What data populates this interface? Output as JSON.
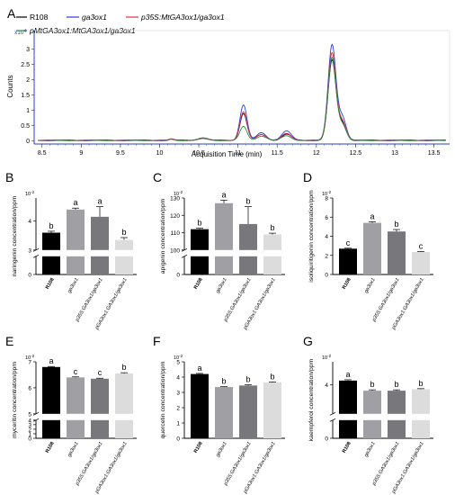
{
  "panel_labels": [
    "A",
    "B",
    "C",
    "D",
    "E",
    "F",
    "G"
  ],
  "colors": {
    "R108": "#000000",
    "ga3ox1": "#2a3fd6",
    "p35S": "#e0304a",
    "pMtGA3ox1": "#2e8b3a",
    "bar_dark": "#000000",
    "bar_mid": "#a0a0a4",
    "bar_grey": "#78787c",
    "bar_light": "#dcdcdc",
    "axis_blue": "#2a3fd6"
  },
  "chart_data": [
    {
      "type": "line",
      "panel": "A",
      "ylabel": "Counts",
      "xlabel": "Acquisition Time (min)",
      "y_exponent": "x10",
      "y_exponent_power": "4",
      "xlim": [
        8.4,
        13.7
      ],
      "ylim": [
        -0.1,
        3.6
      ],
      "x_ticks": [
        "8.5",
        "9",
        "9.5",
        "10",
        "10.5",
        "11",
        "11.5",
        "12",
        "12.5",
        "13",
        "13.5"
      ],
      "y_ticks": [
        "0",
        "0.5",
        "1",
        "1.5",
        "2",
        "2.5",
        "3"
      ],
      "legend": [
        "R108",
        "ga3ox1",
        "p35S:MtGA3ox1/ga3ox1",
        "pMtGA3ox1:MtGA3ox1/ga3ox1"
      ],
      "series": [
        {
          "name": "R108",
          "color_key": "R108",
          "peaks": [
            [
              10.15,
              0.04,
              0.03
            ],
            [
              10.55,
              0.07,
              0.06
            ],
            [
              11.07,
              0.88,
              0.045
            ],
            [
              11.3,
              0.18,
              0.06
            ],
            [
              11.62,
              0.2,
              0.06
            ],
            [
              12.2,
              2.6,
              0.05
            ],
            [
              12.33,
              0.55,
              0.05
            ]
          ]
        },
        {
          "name": "ga3ox1",
          "color_key": "ga3ox1",
          "peaks": [
            [
              10.15,
              0.04,
              0.03
            ],
            [
              10.55,
              0.08,
              0.06
            ],
            [
              11.07,
              1.15,
              0.045
            ],
            [
              11.3,
              0.25,
              0.06
            ],
            [
              11.62,
              0.3,
              0.06
            ],
            [
              12.2,
              3.1,
              0.05
            ],
            [
              12.33,
              0.75,
              0.05
            ]
          ]
        },
        {
          "name": "p35S:MtGA3ox1/ga3ox1",
          "color_key": "p35S",
          "peaks": [
            [
              10.15,
              0.04,
              0.03
            ],
            [
              10.55,
              0.07,
              0.06
            ],
            [
              11.07,
              0.92,
              0.045
            ],
            [
              11.3,
              0.2,
              0.06
            ],
            [
              11.62,
              0.22,
              0.06
            ],
            [
              12.2,
              2.85,
              0.05
            ],
            [
              12.33,
              0.6,
              0.05
            ]
          ]
        },
        {
          "name": "pMtGA3ox1:MtGA3ox1/ga3ox1",
          "color_key": "pMtGA3ox1",
          "peaks": [
            [
              10.15,
              0.03,
              0.03
            ],
            [
              10.55,
              0.06,
              0.06
            ],
            [
              11.07,
              0.45,
              0.045
            ],
            [
              11.3,
              0.14,
              0.06
            ],
            [
              11.62,
              0.15,
              0.06
            ],
            [
              12.2,
              2.7,
              0.05
            ],
            [
              12.33,
              0.5,
              0.05
            ]
          ]
        }
      ]
    },
    {
      "type": "bar",
      "panel": "B",
      "ylabel": "naringenin concentration/ppm",
      "y_exponent": "10",
      "y_exponent_power": "-2",
      "categories": [
        "R108",
        "ga3ox1",
        "p35S:GA3ox1/ga3ox1",
        "pGA3ox1:GA3ox1/ga3ox1"
      ],
      "values": [
        3.6,
        4.4,
        4.15,
        3.35
      ],
      "errors": [
        0.05,
        0.05,
        0.35,
        0.08
      ],
      "letters": [
        "b",
        "a",
        "a",
        "b"
      ],
      "upper_range": [
        3.0,
        4.8
      ],
      "upper_ticks": [
        3,
        4
      ],
      "lower_range": [
        0,
        0.2
      ],
      "lower_ticks": [
        0
      ]
    },
    {
      "type": "bar",
      "panel": "C",
      "ylabel": "apigenin concentration/ppm",
      "y_exponent": "10",
      "y_exponent_power": "-2",
      "categories": [
        "R108",
        "ga3ox1",
        "p35S:GA3ox1/ga3ox1",
        "pGA3ox1:GA3ox1/ga3ox1"
      ],
      "values": [
        112,
        127,
        115,
        109
      ],
      "errors": [
        0.6,
        1.8,
        10.0,
        0.7
      ],
      "letters": [
        "b",
        "a",
        "b",
        "b"
      ],
      "upper_range": [
        100,
        130
      ],
      "upper_ticks": [
        100,
        110,
        120,
        130
      ],
      "lower_range": [
        0,
        10
      ],
      "lower_ticks": [
        0
      ]
    },
    {
      "type": "bar",
      "panel": "D",
      "ylabel": "isoliquiritigenin concentration/ppm",
      "y_exponent": "10",
      "y_exponent_power": "-2",
      "categories": [
        "R108",
        "ga3ox1",
        "p35S:GA3ox1/ga3ox1",
        "pGA3ox1:GA3ox1/ga3ox1"
      ],
      "values": [
        2.7,
        5.4,
        4.5,
        2.35
      ],
      "errors": [
        0.05,
        0.12,
        0.2,
        0.05
      ],
      "letters": [
        "c",
        "a",
        "b",
        "c"
      ],
      "range": [
        0,
        8
      ],
      "ticks": [
        0,
        2,
        4,
        6,
        8
      ]
    },
    {
      "type": "bar",
      "panel": "E",
      "ylabel": "myceritin concentration/ppm",
      "y_exponent": "10",
      "y_exponent_power": "-2",
      "categories": [
        "R108",
        "ga3ox1",
        "p35S:GA3ox1/ga3ox1",
        "pGA3ox1:GA3ox1/ga3ox1"
      ],
      "values": [
        6.8,
        6.4,
        6.35,
        6.55
      ],
      "errors": [
        0.02,
        0.02,
        0.02,
        0.03
      ],
      "letters": [
        "a",
        "c",
        "c",
        "b"
      ],
      "upper_range": [
        5,
        7
      ],
      "upper_ticks": [
        5,
        6,
        7
      ],
      "lower_range": [
        0,
        4
      ],
      "lower_ticks": [
        0,
        1,
        2,
        3,
        4
      ]
    },
    {
      "type": "bar",
      "panel": "F",
      "ylabel": "quercetin concentration/ppm",
      "y_exponent": "10",
      "y_exponent_power": "-2",
      "categories": [
        "R108",
        "ga3ox1",
        "p35S:GA3ox1/ga3ox1",
        "pGA3ox1:GA3ox1/ga3ox1"
      ],
      "values": [
        4.2,
        3.35,
        3.45,
        3.65
      ],
      "errors": [
        0.04,
        0.03,
        0.05,
        0.03
      ],
      "letters": [
        "a",
        "b",
        "b",
        "b"
      ],
      "range": [
        0,
        5
      ],
      "ticks": [
        0,
        1,
        2,
        3,
        4,
        5
      ]
    },
    {
      "type": "bar",
      "panel": "G",
      "ylabel": "kaempferol concentration/ppm",
      "y_exponent": "10",
      "y_exponent_power": "-2",
      "categories": [
        "R108",
        "ga3ox1",
        "p35S:GA3ox1/ga3ox1",
        "pGA3ox1:GA3ox1/ga3ox1"
      ],
      "values": [
        4.15,
        3.8,
        3.8,
        3.85
      ],
      "errors": [
        0.03,
        0.03,
        0.03,
        0.02
      ],
      "letters": [
        "a",
        "b",
        "b",
        "b"
      ],
      "upper_range": [
        3.0,
        4.8
      ],
      "upper_ticks": [
        4
      ],
      "lower_range": [
        0,
        0.2
      ],
      "lower_ticks": [
        0
      ]
    }
  ]
}
